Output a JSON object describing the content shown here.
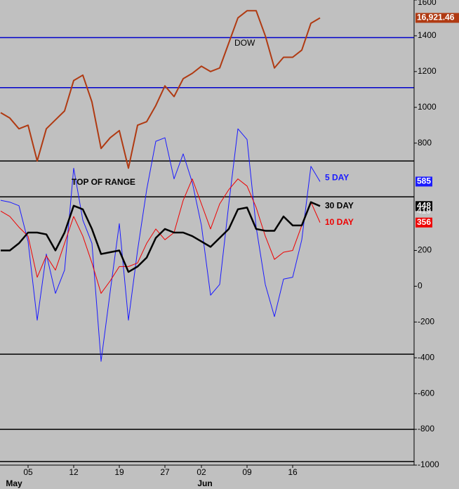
{
  "chart_data": {
    "type": "line",
    "categories": [
      null,
      null,
      null,
      "05",
      null,
      null,
      null,
      null,
      "12",
      null,
      null,
      null,
      null,
      "19",
      null,
      null,
      null,
      null,
      "27",
      null,
      null,
      null,
      "02",
      null,
      null,
      null,
      null,
      "09",
      null,
      null,
      null,
      null,
      "16",
      null,
      null,
      null
    ],
    "months": [
      "May",
      "Jun"
    ],
    "series": [
      {
        "name": "DOW",
        "color": "#b03a12",
        "width": 2,
        "values": [
          970,
          940,
          880,
          900,
          700,
          880,
          930,
          980,
          1150,
          1180,
          1030,
          770,
          830,
          870,
          660,
          900,
          920,
          1010,
          1120,
          1060,
          1160,
          1190,
          1230,
          1200,
          1220,
          1360,
          1500,
          1540,
          1540,
          1400,
          1220,
          1280,
          1280,
          1320,
          1470,
          1500
        ]
      },
      {
        "name": "5 DAY",
        "color": "#1a1aff",
        "width": 1,
        "values": [
          480,
          470,
          450,
          250,
          -190,
          180,
          -40,
          90,
          660,
          370,
          240,
          -420,
          -30,
          350,
          -190,
          200,
          540,
          810,
          830,
          600,
          740,
          580,
          340,
          -50,
          10,
          460,
          880,
          820,
          330,
          10,
          -170,
          40,
          50,
          260,
          670,
          585
        ]
      },
      {
        "name": "10 DAY",
        "color": "#ee0000",
        "width": 1,
        "values": [
          420,
          390,
          330,
          280,
          50,
          170,
          90,
          240,
          390,
          280,
          130,
          -40,
          30,
          110,
          110,
          130,
          240,
          320,
          260,
          300,
          480,
          600,
          460,
          320,
          460,
          540,
          600,
          560,
          440,
          280,
          150,
          190,
          200,
          340,
          470,
          356
        ]
      },
      {
        "name": "30 DAY",
        "color": "#000000",
        "width": 2.5,
        "values": [
          200,
          200,
          240,
          300,
          300,
          290,
          200,
          300,
          450,
          430,
          320,
          180,
          190,
          200,
          80,
          110,
          160,
          270,
          320,
          300,
          300,
          280,
          250,
          220,
          270,
          320,
          430,
          440,
          320,
          310,
          310,
          390,
          340,
          340,
          470,
          448
        ]
      }
    ],
    "ylim": [
      -1000,
      1600
    ],
    "yticks": [
      1600,
      1400,
      1200,
      1000,
      800,
      200,
      0,
      -200,
      -400,
      -600,
      -800,
      -1000
    ],
    "hlines": [
      {
        "value": 1390,
        "color": "#0000cc"
      },
      {
        "value": 1110,
        "color": "#0000cc"
      },
      {
        "value": 700,
        "color": "#000000"
      },
      {
        "value": 500,
        "color": "#000000"
      },
      {
        "value": -380,
        "color": "#000000"
      },
      {
        "value": -800,
        "color": "#000000"
      },
      {
        "value": -980,
        "color": "#000000"
      }
    ],
    "annotation": "TOP OF RANGE",
    "dow_label": "16,921.46",
    "grey_tag": 419
  }
}
